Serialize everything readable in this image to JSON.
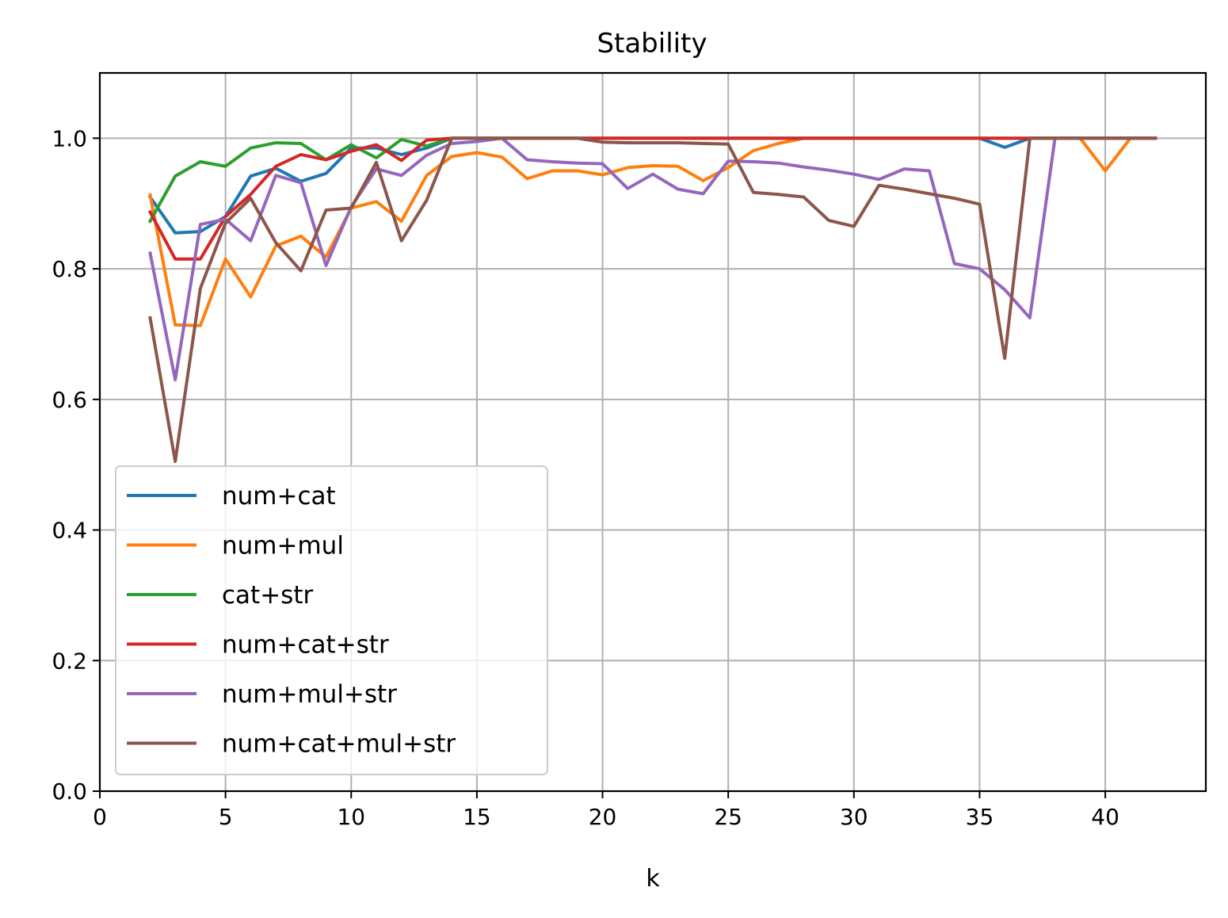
{
  "chart_data": {
    "type": "line",
    "title": "Stability",
    "xlabel": "k",
    "ylabel": "",
    "xlim": [
      0,
      44
    ],
    "ylim": [
      0,
      1.1
    ],
    "xticks": [
      0,
      5,
      10,
      15,
      20,
      25,
      30,
      35,
      40
    ],
    "yticks": [
      0.0,
      0.2,
      0.4,
      0.6,
      0.8,
      1.0
    ],
    "xtick_labels": [
      "0",
      "5",
      "10",
      "15",
      "20",
      "25",
      "30",
      "35",
      "40"
    ],
    "ytick_labels": [
      "0.0",
      "0.2",
      "0.4",
      "0.6",
      "0.8",
      "1.0"
    ],
    "grid": true,
    "legend_position": "lower-left",
    "x": [
      2,
      3,
      4,
      5,
      6,
      7,
      8,
      9,
      10,
      11,
      12,
      13,
      14,
      15,
      16,
      17,
      18,
      19,
      20,
      21,
      22,
      23,
      24,
      25,
      26,
      27,
      28,
      29,
      30,
      31,
      32,
      33,
      34,
      35,
      36,
      37,
      38,
      39,
      40,
      41,
      42
    ],
    "series": [
      {
        "name": "num+cat",
        "color": "#1f77b4",
        "values": [
          0.91,
          0.855,
          0.857,
          0.88,
          0.942,
          0.954,
          0.934,
          0.946,
          0.985,
          0.985,
          0.975,
          0.985,
          1.0,
          1.0,
          1.0,
          1.0,
          1.0,
          1.0,
          1.0,
          1.0,
          1.0,
          1.0,
          1.0,
          1.0,
          1.0,
          1.0,
          1.0,
          1.0,
          1.0,
          1.0,
          1.0,
          1.0,
          1.0,
          1.0,
          0.986,
          1.0,
          1.0,
          1.0,
          1.0,
          1.0,
          1.0
        ]
      },
      {
        "name": "num+mul",
        "color": "#ff7f0e",
        "values": [
          0.913,
          0.714,
          0.713,
          0.815,
          0.757,
          0.835,
          0.85,
          0.818,
          0.893,
          0.903,
          0.873,
          0.943,
          0.972,
          0.978,
          0.971,
          0.938,
          0.95,
          0.95,
          0.944,
          0.955,
          0.958,
          0.957,
          0.935,
          0.955,
          0.981,
          0.992,
          1.0,
          1.0,
          1.0,
          1.0,
          1.0,
          1.0,
          1.0,
          1.0,
          1.0,
          1.0,
          1.0,
          1.0,
          0.95,
          1.0,
          1.0
        ]
      },
      {
        "name": "cat+str",
        "color": "#2ca02c",
        "values": [
          0.873,
          0.942,
          0.964,
          0.957,
          0.985,
          0.993,
          0.992,
          0.967,
          0.99,
          0.97,
          0.998,
          0.988,
          1.0,
          1.0,
          1.0,
          1.0,
          1.0,
          1.0,
          1.0,
          1.0,
          1.0,
          1.0,
          1.0,
          1.0,
          1.0,
          1.0,
          1.0,
          1.0,
          1.0,
          1.0,
          1.0,
          1.0,
          1.0,
          1.0,
          1.0,
          1.0,
          1.0,
          1.0,
          1.0,
          1.0,
          1.0
        ]
      },
      {
        "name": "num+cat+str",
        "color": "#d62728",
        "values": [
          0.887,
          0.815,
          0.815,
          0.88,
          0.914,
          0.957,
          0.975,
          0.967,
          0.98,
          0.99,
          0.966,
          0.997,
          1.0,
          1.0,
          1.0,
          1.0,
          1.0,
          1.0,
          1.0,
          1.0,
          1.0,
          1.0,
          1.0,
          1.0,
          1.0,
          1.0,
          1.0,
          1.0,
          1.0,
          1.0,
          1.0,
          1.0,
          1.0,
          1.0,
          1.0,
          1.0,
          1.0,
          1.0,
          1.0,
          1.0,
          1.0
        ]
      },
      {
        "name": "num+mul+str",
        "color": "#9467bd",
        "values": [
          0.824,
          0.63,
          0.868,
          0.876,
          0.843,
          0.943,
          0.932,
          0.805,
          0.895,
          0.953,
          0.943,
          0.974,
          0.992,
          0.995,
          1.0,
          0.967,
          0.964,
          0.962,
          0.961,
          0.923,
          0.945,
          0.922,
          0.915,
          0.965,
          0.964,
          0.962,
          0.956,
          0.951,
          0.945,
          0.937,
          0.953,
          0.95,
          0.808,
          0.8,
          0.768,
          0.725,
          1.0,
          1.0,
          1.0,
          1.0,
          1.0
        ]
      },
      {
        "name": "num+cat+mul+str",
        "color": "#8c564b",
        "values": [
          0.725,
          0.505,
          0.77,
          0.87,
          0.908,
          0.84,
          0.797,
          0.89,
          0.893,
          0.963,
          0.843,
          0.905,
          1.0,
          1.0,
          1.0,
          1.0,
          1.0,
          1.0,
          0.994,
          0.993,
          0.993,
          0.993,
          0.992,
          0.991,
          0.917,
          0.914,
          0.91,
          0.874,
          0.865,
          0.928,
          0.922,
          0.915,
          0.908,
          0.899,
          0.663,
          1.0,
          1.0,
          1.0,
          1.0,
          1.0,
          1.0
        ]
      }
    ]
  }
}
